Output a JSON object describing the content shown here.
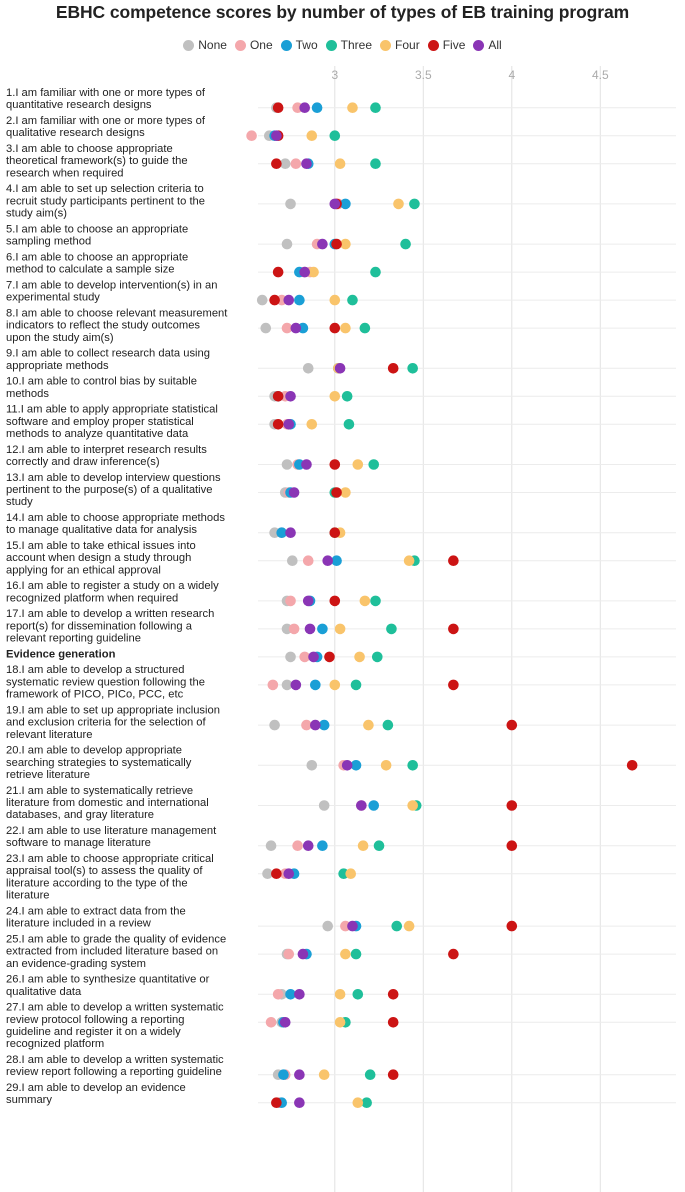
{
  "title": "EBHC competence scores by number of types of EB training program",
  "chart_data": {
    "type": "scatter",
    "title": "EBHC competence scores by number of types of EB training program",
    "xlim": [
      2.6,
      4.65
    ],
    "xticks": [
      3,
      3.5,
      4,
      4.5
    ],
    "xtick_labels": [
      "3",
      "3.5",
      "4",
      "4.5"
    ],
    "grid": true,
    "legend_position": "top",
    "series": [
      {
        "name": "None",
        "color": "#c0c0c0"
      },
      {
        "name": "One",
        "color": "#f4a7ab"
      },
      {
        "name": "Two",
        "color": "#1a9fd6"
      },
      {
        "name": "Three",
        "color": "#1fbf9a"
      },
      {
        "name": "Four",
        "color": "#f9c46b"
      },
      {
        "name": "Five",
        "color": "#cc1414"
      },
      {
        "name": "All",
        "color": "#8a35b5"
      }
    ],
    "rows": [
      {
        "label": [
          "1.I am familiar with one or more types of",
          "quantitative research designs"
        ],
        "values": [
          2.67,
          2.79,
          2.9,
          3.23,
          3.1,
          2.68,
          2.83
        ]
      },
      {
        "label": [
          "2.I am familiar with one or more types of",
          "qualitative research designs"
        ],
        "values": [
          2.63,
          2.53,
          2.66,
          3.0,
          2.87,
          2.68,
          2.67
        ]
      },
      {
        "label": [
          "3.I am able to choose appropriate",
          "theoretical framework(s) to guide the",
          "research when required"
        ],
        "values": [
          2.72,
          2.78,
          2.85,
          3.23,
          3.03,
          2.67,
          2.84
        ]
      },
      {
        "label": [
          "4.I am able to set up selection criteria to",
          "recruit study participants pertinent to the",
          "study aim(s)"
        ],
        "values": [
          2.75,
          3.02,
          3.06,
          3.45,
          3.36,
          3.01,
          3.0
        ]
      },
      {
        "label": [
          "5.I am able to choose an appropriate",
          "sampling method"
        ],
        "values": [
          2.73,
          2.9,
          3.0,
          3.4,
          3.06,
          3.01,
          2.93
        ]
      },
      {
        "label": [
          "6.I am able to choose an appropriate",
          "method to calculate a sample size"
        ],
        "values": [
          2.83,
          2.86,
          2.8,
          3.23,
          2.88,
          2.68,
          2.83
        ]
      },
      {
        "label": [
          "7.I am able to develop intervention(s) in an",
          "experimental study"
        ],
        "values": [
          2.59,
          2.7,
          2.8,
          3.1,
          3.0,
          2.66,
          2.74
        ]
      },
      {
        "label": [
          "8.I am able to choose relevant measurement",
          "indicators to reflect the study outcomes",
          "upon the study aim(s)"
        ],
        "values": [
          2.61,
          2.73,
          2.82,
          3.17,
          3.06,
          3.0,
          2.78
        ]
      },
      {
        "label": [
          "9.I am able to collect research data using",
          "appropriate methods"
        ],
        "values": [
          2.85,
          3.02,
          3.02,
          3.44,
          3.02,
          3.33,
          3.03
        ]
      },
      {
        "label": [
          "10.I am able to control bias by suitable",
          "methods"
        ],
        "values": [
          2.66,
          2.72,
          2.68,
          3.07,
          3.0,
          2.68,
          2.75
        ]
      },
      {
        "label": [
          "11.I am able to apply appropriate statistical",
          "software and employ proper statistical",
          "methods to analyze quantitative data"
        ],
        "values": [
          2.66,
          2.73,
          2.75,
          3.08,
          2.87,
          2.68,
          2.74
        ]
      },
      {
        "label": [
          "12.I am able to interpret research results",
          "correctly and draw inference(s)"
        ],
        "values": [
          2.73,
          2.79,
          2.8,
          3.22,
          3.13,
          3.0,
          2.84
        ]
      },
      {
        "label": [
          "13.I am able to develop interview questions",
          "pertinent to the purpose(s) of a qualitative",
          "study"
        ],
        "values": [
          2.72,
          2.74,
          2.75,
          3.0,
          3.06,
          3.01,
          2.77
        ]
      },
      {
        "label": [
          "14.I am able to choose appropriate methods",
          "to manage qualitative data for analysis"
        ],
        "values": [
          2.66,
          2.7,
          2.7,
          3.0,
          3.03,
          3.0,
          2.75
        ]
      },
      {
        "label": [
          "15.I am able to take ethical issues into",
          "account when design a study through",
          "applying for an ethical approval"
        ],
        "values": [
          2.76,
          2.85,
          3.01,
          3.45,
          3.42,
          3.67,
          2.96
        ]
      },
      {
        "label": [
          "16.I am able to register a study on a widely",
          "recognized platform when required"
        ],
        "values": [
          2.73,
          2.75,
          2.86,
          3.23,
          3.17,
          3.0,
          2.85
        ]
      },
      {
        "label": [
          "17.I am able to develop a written research",
          "report(s) for dissemination following a",
          "relevant reporting guideline"
        ],
        "values": [
          2.73,
          2.77,
          2.93,
          3.32,
          3.03,
          3.67,
          2.86
        ]
      },
      {
        "label": [
          "Evidence generation"
        ],
        "bold": true,
        "values": [
          2.75,
          2.83,
          2.9,
          3.24,
          3.14,
          2.97,
          2.88
        ]
      },
      {
        "label": [
          "18.I am able to develop a structured",
          "systematic review question following the",
          "framework of PICO, PICo, PCC, etc"
        ],
        "values": [
          2.73,
          2.65,
          2.89,
          3.12,
          3.0,
          3.67,
          2.78
        ]
      },
      {
        "label": [
          "19.I am able to set up appropriate inclusion",
          "and exclusion criteria for the selection of",
          "relevant literature"
        ],
        "values": [
          2.66,
          2.84,
          2.94,
          3.3,
          3.19,
          4.0,
          2.89
        ]
      },
      {
        "label": [
          "20.I am able to develop appropriate",
          "searching strategies to systematically",
          "retrieve literature"
        ],
        "values": [
          2.87,
          3.05,
          3.12,
          3.44,
          3.29,
          4.68,
          3.07
        ]
      },
      {
        "label": [
          "21.I am able to systematically retrieve",
          "literature from domestic and international",
          "databases, and gray literature"
        ],
        "values": [
          2.94,
          3.15,
          3.22,
          3.46,
          3.44,
          4.0,
          3.15
        ]
      },
      {
        "label": [
          "22.I am able to use literature management",
          "software to manage literature"
        ],
        "values": [
          2.64,
          2.79,
          2.93,
          3.25,
          3.16,
          4.0,
          2.85
        ]
      },
      {
        "label": [
          "23.I am able to choose appropriate critical",
          "appraisal tool(s) to assess the quality of",
          "literature according to the type of the",
          "literature"
        ],
        "values": [
          2.62,
          2.72,
          2.77,
          3.05,
          3.09,
          2.67,
          2.74
        ]
      },
      {
        "label": [
          "24.I am able to extract data from the",
          "literature included in a review"
        ],
        "values": [
          2.96,
          3.06,
          3.12,
          3.35,
          3.42,
          4.0,
          3.1
        ]
      },
      {
        "label": [
          "25.I am able to grade the quality of evidence",
          "extracted from included literature based on",
          "an evidence-grading system"
        ],
        "values": [
          2.73,
          2.74,
          2.84,
          3.12,
          3.06,
          3.67,
          2.82
        ]
      },
      {
        "label": [
          "26.I am able to synthesize quantitative or",
          "qualitative data"
        ],
        "values": [
          2.7,
          2.68,
          2.75,
          3.13,
          3.03,
          3.33,
          2.8
        ]
      },
      {
        "label": [
          "27.I am able to develop a written systematic",
          "review protocol following a reporting",
          "guideline and register it on a widely",
          "recognized platform"
        ],
        "values": [
          2.7,
          2.64,
          2.71,
          3.06,
          3.03,
          3.33,
          2.72
        ]
      },
      {
        "label": [
          "28.I am able to develop a written systematic",
          "review report following a reporting guideline"
        ],
        "values": [
          2.68,
          2.72,
          2.71,
          3.2,
          2.94,
          3.33,
          2.8
        ]
      },
      {
        "label": [
          "29.I am able to develop an evidence",
          "summary"
        ],
        "values": [
          2.68,
          2.69,
          2.7,
          3.18,
          3.13,
          2.67,
          2.8
        ]
      }
    ]
  }
}
